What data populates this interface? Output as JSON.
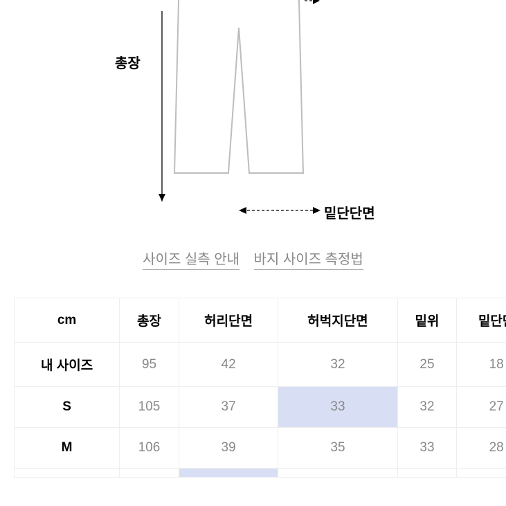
{
  "diagram": {
    "labels": {
      "total_length": "총장",
      "top_partial": "",
      "hem": "밑단단면"
    },
    "pants_outline_color": "#bdbdbd",
    "arrow_color": "#000000",
    "arrow_stroke_width": 1.3
  },
  "links": {
    "guide": "사이즈 실측 안내",
    "howto": "바지 사이즈 측정법",
    "color": "#888888"
  },
  "table": {
    "unit_label": "cm",
    "columns": [
      "총장",
      "허리단면",
      "허벅지단면",
      "밑위",
      "밑단단"
    ],
    "rows": [
      {
        "label": "내 사이즈",
        "values": [
          "95",
          "42",
          "32",
          "25",
          "18"
        ],
        "highlights": [
          false,
          false,
          false,
          false,
          false
        ]
      },
      {
        "label": "S",
        "values": [
          "105",
          "37",
          "33",
          "32",
          "27"
        ],
        "highlights": [
          false,
          false,
          true,
          false,
          false
        ]
      },
      {
        "label": "M",
        "values": [
          "106",
          "39",
          "35",
          "33",
          "28"
        ],
        "highlights": [
          false,
          false,
          false,
          false,
          false
        ]
      }
    ],
    "border_color": "#eeeeee",
    "header_color": "#000000",
    "value_color": "#888888",
    "highlight_bg": "#d8dff5"
  }
}
